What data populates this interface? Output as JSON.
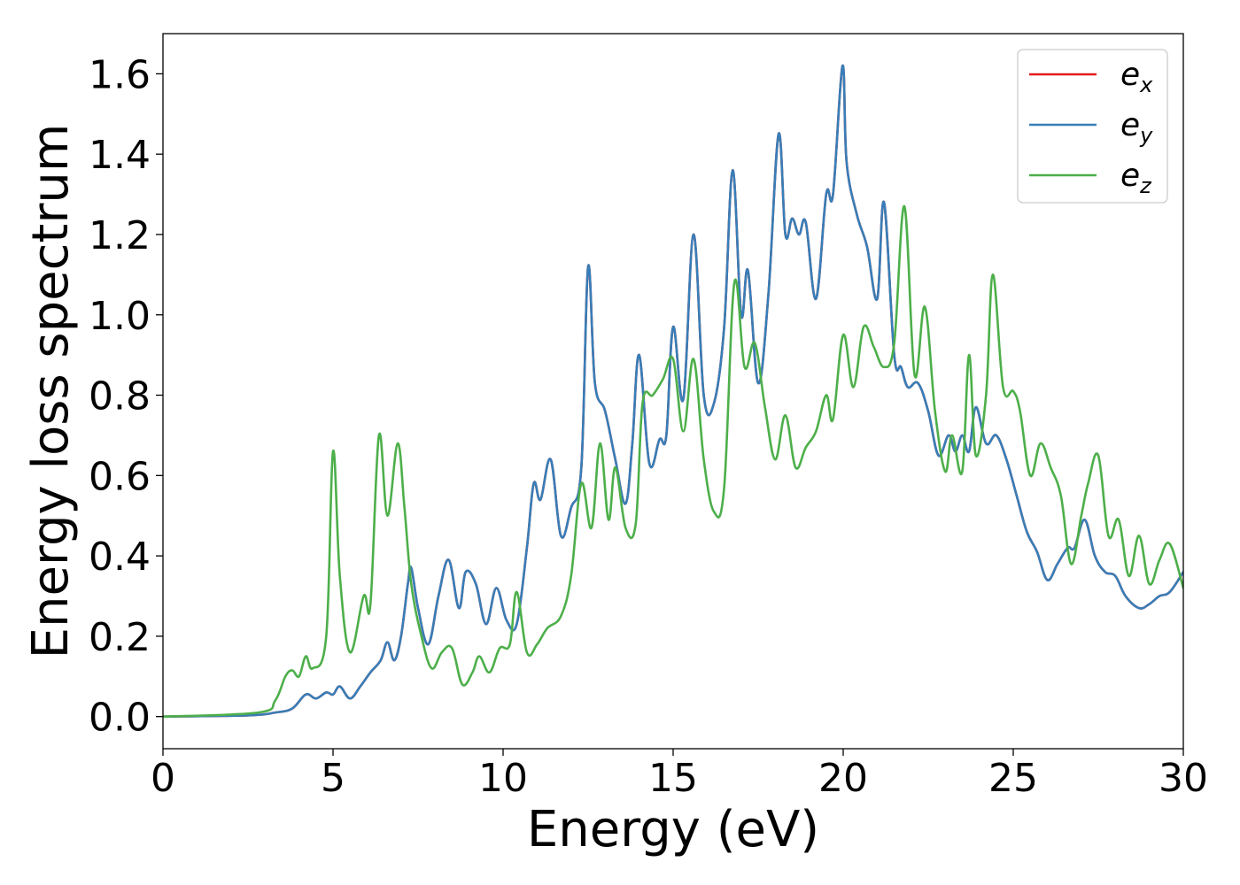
{
  "chart_data": {
    "type": "line",
    "title": "",
    "xlabel": "Energy (eV)",
    "ylabel": "Energy loss spectrum",
    "xlim": [
      0,
      30
    ],
    "ylim": [
      -0.08,
      1.7
    ],
    "xticks": [
      0,
      5,
      10,
      15,
      20,
      25,
      30
    ],
    "xtick_labels": [
      "0",
      "5",
      "10",
      "15",
      "20",
      "25",
      "30"
    ],
    "yticks": [
      0.0,
      0.2,
      0.4,
      0.6,
      0.8,
      1.0,
      1.2,
      1.4,
      1.6
    ],
    "ytick_labels": [
      "0.0",
      "0.2",
      "0.4",
      "0.6",
      "0.8",
      "1.0",
      "1.2",
      "1.4",
      "1.6"
    ],
    "grid": false,
    "legend_position": "top-right",
    "series": [
      {
        "name": "e_x",
        "label_base": "e",
        "label_sub": "x",
        "color": "#e41a1c",
        "x": [
          0,
          2.5,
          3.3,
          3.8,
          4.2,
          4.5,
          4.8,
          5.0,
          5.2,
          5.5,
          5.8,
          6.1,
          6.4,
          6.6,
          6.8,
          7.0,
          7.2,
          7.3,
          7.5,
          7.8,
          8.1,
          8.4,
          8.7,
          8.9,
          9.2,
          9.5,
          9.8,
          10.1,
          10.4,
          10.7,
          10.9,
          11.1,
          11.4,
          11.7,
          12.0,
          12.3,
          12.5,
          12.7,
          13.0,
          13.3,
          13.6,
          13.8,
          14.0,
          14.3,
          14.6,
          14.8,
          15.0,
          15.3,
          15.6,
          15.9,
          16.2,
          16.5,
          16.75,
          17.0,
          17.2,
          17.5,
          17.8,
          18.1,
          18.3,
          18.5,
          18.7,
          18.9,
          19.2,
          19.5,
          19.7,
          19.98,
          20.1,
          20.4,
          20.7,
          21.0,
          21.2,
          21.5,
          21.7,
          21.9,
          22.2,
          22.5,
          22.8,
          23.1,
          23.3,
          23.5,
          23.7,
          23.9,
          24.2,
          24.5,
          24.8,
          25.1,
          25.4,
          25.7,
          26.0,
          26.3,
          26.6,
          26.8,
          27.1,
          27.4,
          27.7,
          28.0,
          28.3,
          28.7,
          29.0,
          29.3,
          29.6,
          30.0
        ],
        "y": [
          0.0,
          0.003,
          0.01,
          0.02,
          0.055,
          0.045,
          0.06,
          0.055,
          0.075,
          0.045,
          0.075,
          0.11,
          0.14,
          0.185,
          0.14,
          0.2,
          0.33,
          0.37,
          0.27,
          0.18,
          0.3,
          0.39,
          0.27,
          0.36,
          0.33,
          0.23,
          0.32,
          0.24,
          0.23,
          0.42,
          0.58,
          0.54,
          0.64,
          0.45,
          0.52,
          0.62,
          1.12,
          0.83,
          0.76,
          0.64,
          0.53,
          0.68,
          0.9,
          0.63,
          0.69,
          0.7,
          0.97,
          0.79,
          1.2,
          0.8,
          0.78,
          0.97,
          1.36,
          1.0,
          1.11,
          0.83,
          1.05,
          1.45,
          1.2,
          1.24,
          1.2,
          1.23,
          1.04,
          1.3,
          1.3,
          1.62,
          1.38,
          1.25,
          1.17,
          1.04,
          1.28,
          0.9,
          0.87,
          0.82,
          0.83,
          0.76,
          0.65,
          0.7,
          0.66,
          0.7,
          0.66,
          0.77,
          0.68,
          0.7,
          0.64,
          0.55,
          0.46,
          0.41,
          0.34,
          0.38,
          0.42,
          0.42,
          0.49,
          0.4,
          0.36,
          0.35,
          0.3,
          0.27,
          0.28,
          0.3,
          0.31,
          0.36
        ]
      },
      {
        "name": "e_y",
        "label_base": "e",
        "label_sub": "y",
        "color": "#377eb8",
        "x": [
          0,
          2.5,
          3.3,
          3.8,
          4.2,
          4.5,
          4.8,
          5.0,
          5.2,
          5.5,
          5.8,
          6.1,
          6.4,
          6.6,
          6.8,
          7.0,
          7.2,
          7.3,
          7.5,
          7.8,
          8.1,
          8.4,
          8.7,
          8.9,
          9.2,
          9.5,
          9.8,
          10.1,
          10.4,
          10.7,
          10.9,
          11.1,
          11.4,
          11.7,
          12.0,
          12.3,
          12.5,
          12.7,
          13.0,
          13.3,
          13.6,
          13.8,
          14.0,
          14.3,
          14.6,
          14.8,
          15.0,
          15.3,
          15.6,
          15.9,
          16.2,
          16.5,
          16.75,
          17.0,
          17.2,
          17.5,
          17.8,
          18.1,
          18.3,
          18.5,
          18.7,
          18.9,
          19.2,
          19.5,
          19.7,
          19.98,
          20.1,
          20.4,
          20.7,
          21.0,
          21.2,
          21.5,
          21.7,
          21.9,
          22.2,
          22.5,
          22.8,
          23.1,
          23.3,
          23.5,
          23.7,
          23.9,
          24.2,
          24.5,
          24.8,
          25.1,
          25.4,
          25.7,
          26.0,
          26.3,
          26.6,
          26.8,
          27.1,
          27.4,
          27.7,
          28.0,
          28.3,
          28.7,
          29.0,
          29.3,
          29.6,
          30.0
        ],
        "y": [
          0.0,
          0.003,
          0.01,
          0.02,
          0.055,
          0.045,
          0.06,
          0.055,
          0.075,
          0.045,
          0.075,
          0.11,
          0.14,
          0.185,
          0.14,
          0.2,
          0.33,
          0.37,
          0.27,
          0.18,
          0.3,
          0.39,
          0.27,
          0.36,
          0.33,
          0.23,
          0.32,
          0.24,
          0.23,
          0.42,
          0.58,
          0.54,
          0.64,
          0.45,
          0.52,
          0.62,
          1.12,
          0.83,
          0.76,
          0.64,
          0.53,
          0.68,
          0.9,
          0.63,
          0.69,
          0.7,
          0.97,
          0.79,
          1.2,
          0.8,
          0.78,
          0.97,
          1.36,
          1.0,
          1.11,
          0.83,
          1.05,
          1.45,
          1.2,
          1.24,
          1.2,
          1.23,
          1.04,
          1.3,
          1.3,
          1.62,
          1.38,
          1.25,
          1.17,
          1.04,
          1.28,
          0.9,
          0.87,
          0.82,
          0.83,
          0.76,
          0.65,
          0.7,
          0.66,
          0.7,
          0.66,
          0.77,
          0.68,
          0.7,
          0.64,
          0.55,
          0.46,
          0.41,
          0.34,
          0.38,
          0.42,
          0.42,
          0.49,
          0.4,
          0.36,
          0.35,
          0.3,
          0.27,
          0.28,
          0.3,
          0.31,
          0.36
        ]
      },
      {
        "name": "e_z",
        "label_base": "e",
        "label_sub": "z",
        "color": "#4daf4a",
        "x": [
          0,
          2.8,
          3.3,
          3.6,
          3.8,
          4.0,
          4.2,
          4.4,
          4.8,
          5.0,
          5.2,
          5.5,
          5.9,
          6.1,
          6.35,
          6.6,
          6.9,
          7.1,
          7.3,
          7.6,
          7.9,
          8.2,
          8.5,
          8.8,
          9.1,
          9.3,
          9.6,
          9.9,
          10.2,
          10.4,
          10.7,
          11.0,
          11.3,
          11.7,
          12.0,
          12.3,
          12.6,
          12.85,
          13.1,
          13.3,
          13.6,
          13.9,
          14.1,
          14.4,
          14.7,
          15.0,
          15.3,
          15.6,
          15.9,
          16.2,
          16.5,
          16.8,
          17.1,
          17.4,
          17.7,
          18.0,
          18.3,
          18.6,
          18.9,
          19.2,
          19.5,
          19.7,
          20.0,
          20.3,
          20.6,
          20.9,
          21.2,
          21.5,
          21.8,
          22.1,
          22.4,
          22.7,
          23.0,
          23.2,
          23.5,
          23.7,
          23.9,
          24.2,
          24.4,
          24.7,
          25.0,
          25.2,
          25.5,
          25.8,
          26.1,
          26.4,
          26.7,
          27.0,
          27.2,
          27.5,
          27.8,
          28.1,
          28.4,
          28.7,
          29.0,
          29.3,
          29.6,
          30.0
        ],
        "y": [
          0.0,
          0.01,
          0.04,
          0.1,
          0.115,
          0.1,
          0.15,
          0.12,
          0.2,
          0.66,
          0.35,
          0.16,
          0.3,
          0.28,
          0.7,
          0.5,
          0.68,
          0.52,
          0.33,
          0.2,
          0.12,
          0.16,
          0.17,
          0.08,
          0.11,
          0.15,
          0.11,
          0.17,
          0.18,
          0.31,
          0.16,
          0.18,
          0.22,
          0.25,
          0.35,
          0.58,
          0.47,
          0.68,
          0.49,
          0.62,
          0.47,
          0.48,
          0.78,
          0.8,
          0.84,
          0.89,
          0.71,
          0.89,
          0.64,
          0.51,
          0.57,
          1.08,
          0.87,
          0.93,
          0.77,
          0.64,
          0.75,
          0.62,
          0.67,
          0.71,
          0.8,
          0.74,
          0.95,
          0.82,
          0.97,
          0.92,
          0.87,
          0.93,
          1.27,
          0.85,
          1.02,
          0.76,
          0.61,
          0.7,
          0.61,
          0.9,
          0.65,
          0.8,
          1.1,
          0.82,
          0.81,
          0.76,
          0.6,
          0.68,
          0.62,
          0.55,
          0.38,
          0.5,
          0.58,
          0.65,
          0.45,
          0.49,
          0.35,
          0.45,
          0.33,
          0.39,
          0.43,
          0.32
        ]
      }
    ]
  }
}
